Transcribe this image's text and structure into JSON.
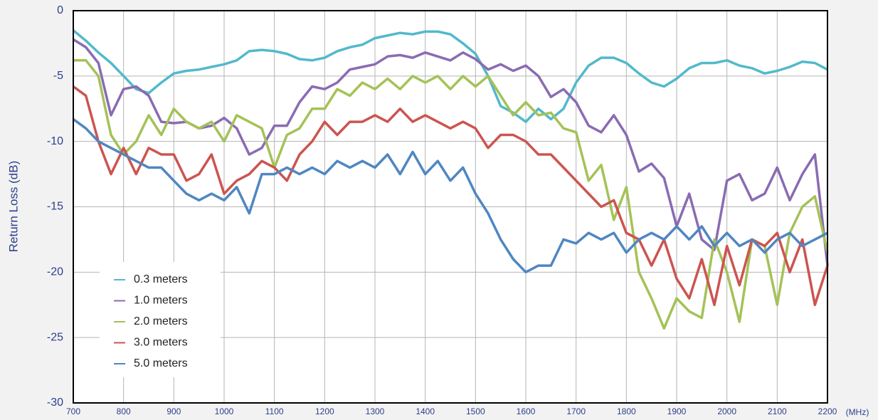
{
  "chart_data": {
    "type": "line",
    "y_label": "Return Loss (dB)",
    "x_unit": "(MHz)",
    "x": [
      700,
      725,
      750,
      775,
      800,
      825,
      850,
      875,
      900,
      925,
      950,
      975,
      1000,
      1025,
      1050,
      1075,
      1100,
      1125,
      1150,
      1175,
      1200,
      1225,
      1250,
      1275,
      1300,
      1325,
      1350,
      1375,
      1400,
      1425,
      1450,
      1475,
      1500,
      1525,
      1550,
      1575,
      1600,
      1625,
      1650,
      1675,
      1700,
      1725,
      1750,
      1775,
      1800,
      1825,
      1850,
      1875,
      1900,
      1925,
      1950,
      1975,
      2000,
      2025,
      2050,
      2075,
      2100,
      2125,
      2150,
      2175,
      2200
    ],
    "series": [
      {
        "name": "0.3 meters",
        "color": "#52b9cc",
        "values": [
          -1.5,
          -2.3,
          -3.2,
          -4.0,
          -5.0,
          -6.0,
          -6.3,
          -5.5,
          -4.8,
          -4.6,
          -4.5,
          -4.3,
          -4.1,
          -3.8,
          -3.1,
          -3.0,
          -3.1,
          -3.3,
          -3.7,
          -3.8,
          -3.6,
          -3.1,
          -2.8,
          -2.6,
          -2.1,
          -1.9,
          -1.7,
          -1.8,
          -1.6,
          -1.6,
          -1.8,
          -2.5,
          -3.3,
          -5.0,
          -7.3,
          -7.8,
          -8.5,
          -7.5,
          -8.3,
          -7.5,
          -5.5,
          -4.2,
          -3.6,
          -3.6,
          -4.0,
          -4.8,
          -5.5,
          -5.8,
          -5.2,
          -4.4,
          -4.0,
          -4.0,
          -3.8,
          -4.2,
          -4.4,
          -4.8,
          -4.6,
          -4.3,
          -3.9,
          -4.0,
          -4.5
        ]
      },
      {
        "name": "1.0 meters",
        "color": "#8a6bb2",
        "values": [
          -2.2,
          -2.8,
          -4.0,
          -8.0,
          -6.0,
          -5.8,
          -6.5,
          -8.5,
          -8.6,
          -8.5,
          -9.0,
          -8.8,
          -8.2,
          -9.0,
          -11.0,
          -10.5,
          -8.8,
          -8.8,
          -7.0,
          -5.8,
          -6.0,
          -5.5,
          -4.5,
          -4.3,
          -4.1,
          -3.5,
          -3.4,
          -3.6,
          -3.2,
          -3.5,
          -3.8,
          -3.2,
          -3.7,
          -4.5,
          -4.1,
          -4.6,
          -4.2,
          -5.0,
          -6.6,
          -6.0,
          -7.0,
          -8.8,
          -9.3,
          -8.0,
          -9.5,
          -12.3,
          -11.7,
          -12.8,
          -16.5,
          -14.0,
          -17.5,
          -18.3,
          -13.0,
          -12.5,
          -14.5,
          -14.0,
          -12.0,
          -14.5,
          -12.5,
          -11.0,
          -19.5
        ]
      },
      {
        "name": "2.0 meters",
        "color": "#a4c257",
        "values": [
          -3.8,
          -3.8,
          -5.0,
          -9.5,
          -11.0,
          -10.0,
          -8.0,
          -9.5,
          -7.5,
          -8.5,
          -9.0,
          -8.5,
          -10.0,
          -8.0,
          -8.5,
          -9.0,
          -12.0,
          -9.5,
          -9.0,
          -7.5,
          -7.5,
          -6.0,
          -6.5,
          -5.5,
          -6.0,
          -5.2,
          -6.0,
          -5.0,
          -5.5,
          -5.0,
          -6.0,
          -5.0,
          -5.8,
          -5.0,
          -6.5,
          -8.0,
          -7.0,
          -8.0,
          -7.8,
          -9.0,
          -9.3,
          -13.0,
          -11.8,
          -16.0,
          -13.5,
          -20.0,
          -22.0,
          -24.3,
          -22.0,
          -23.0,
          -23.5,
          -17.5,
          -20.0,
          -23.8,
          -17.5,
          -18.0,
          -22.5,
          -17.0,
          -15.0,
          -14.2,
          -18.5
        ]
      },
      {
        "name": "3.0 meters",
        "color": "#cc5450",
        "values": [
          -5.8,
          -6.5,
          -10.0,
          -12.5,
          -10.5,
          -12.5,
          -10.5,
          -11.0,
          -11.0,
          -13.0,
          -12.5,
          -11.0,
          -14.0,
          -13.0,
          -12.5,
          -11.5,
          -12.0,
          -13.0,
          -11.0,
          -10.0,
          -8.5,
          -9.5,
          -8.5,
          -8.5,
          -8.0,
          -8.5,
          -7.5,
          -8.5,
          -8.0,
          -8.5,
          -9.0,
          -8.5,
          -9.0,
          -10.5,
          -9.5,
          -9.5,
          -10.0,
          -11.0,
          -11.0,
          -12.0,
          -13.0,
          -14.0,
          -15.0,
          -14.5,
          -17.0,
          -17.5,
          -19.5,
          -17.5,
          -20.5,
          -22.0,
          -19.0,
          -22.5,
          -18.0,
          -21.0,
          -17.5,
          -18.0,
          -17.0,
          -20.0,
          -17.5,
          -22.5,
          -19.5
        ]
      },
      {
        "name": "5.0 meters",
        "color": "#4f87c1",
        "values": [
          -8.3,
          -9.0,
          -10.0,
          -10.5,
          -11.0,
          -11.5,
          -12.0,
          -12.0,
          -13.0,
          -14.0,
          -14.5,
          -14.0,
          -14.5,
          -13.5,
          -15.5,
          -12.5,
          -12.5,
          -12.0,
          -12.5,
          -12.0,
          -12.5,
          -11.5,
          -12.0,
          -11.5,
          -12.0,
          -11.0,
          -12.5,
          -10.8,
          -12.5,
          -11.5,
          -13.0,
          -12.0,
          -14.0,
          -15.5,
          -17.5,
          -19.0,
          -20.0,
          -19.5,
          -19.5,
          -17.5,
          -17.8,
          -17.0,
          -17.5,
          -17.0,
          -18.5,
          -17.5,
          -17.0,
          -17.5,
          -16.5,
          -17.5,
          -16.5,
          -18.0,
          -17.0,
          -18.0,
          -17.5,
          -18.5,
          -17.5,
          -17.0,
          -18.0,
          -17.5,
          -17.0
        ]
      }
    ],
    "xlim": [
      700,
      2200
    ],
    "xticks": [
      700,
      800,
      900,
      1000,
      1100,
      1200,
      1300,
      1400,
      1500,
      1600,
      1700,
      1800,
      1900,
      2000,
      2100,
      2200
    ],
    "ylim": [
      -30,
      0
    ],
    "yticks": [
      0,
      -5,
      -10,
      -15,
      -20,
      -25,
      -30
    ],
    "grid": true,
    "legend": "lower left"
  }
}
